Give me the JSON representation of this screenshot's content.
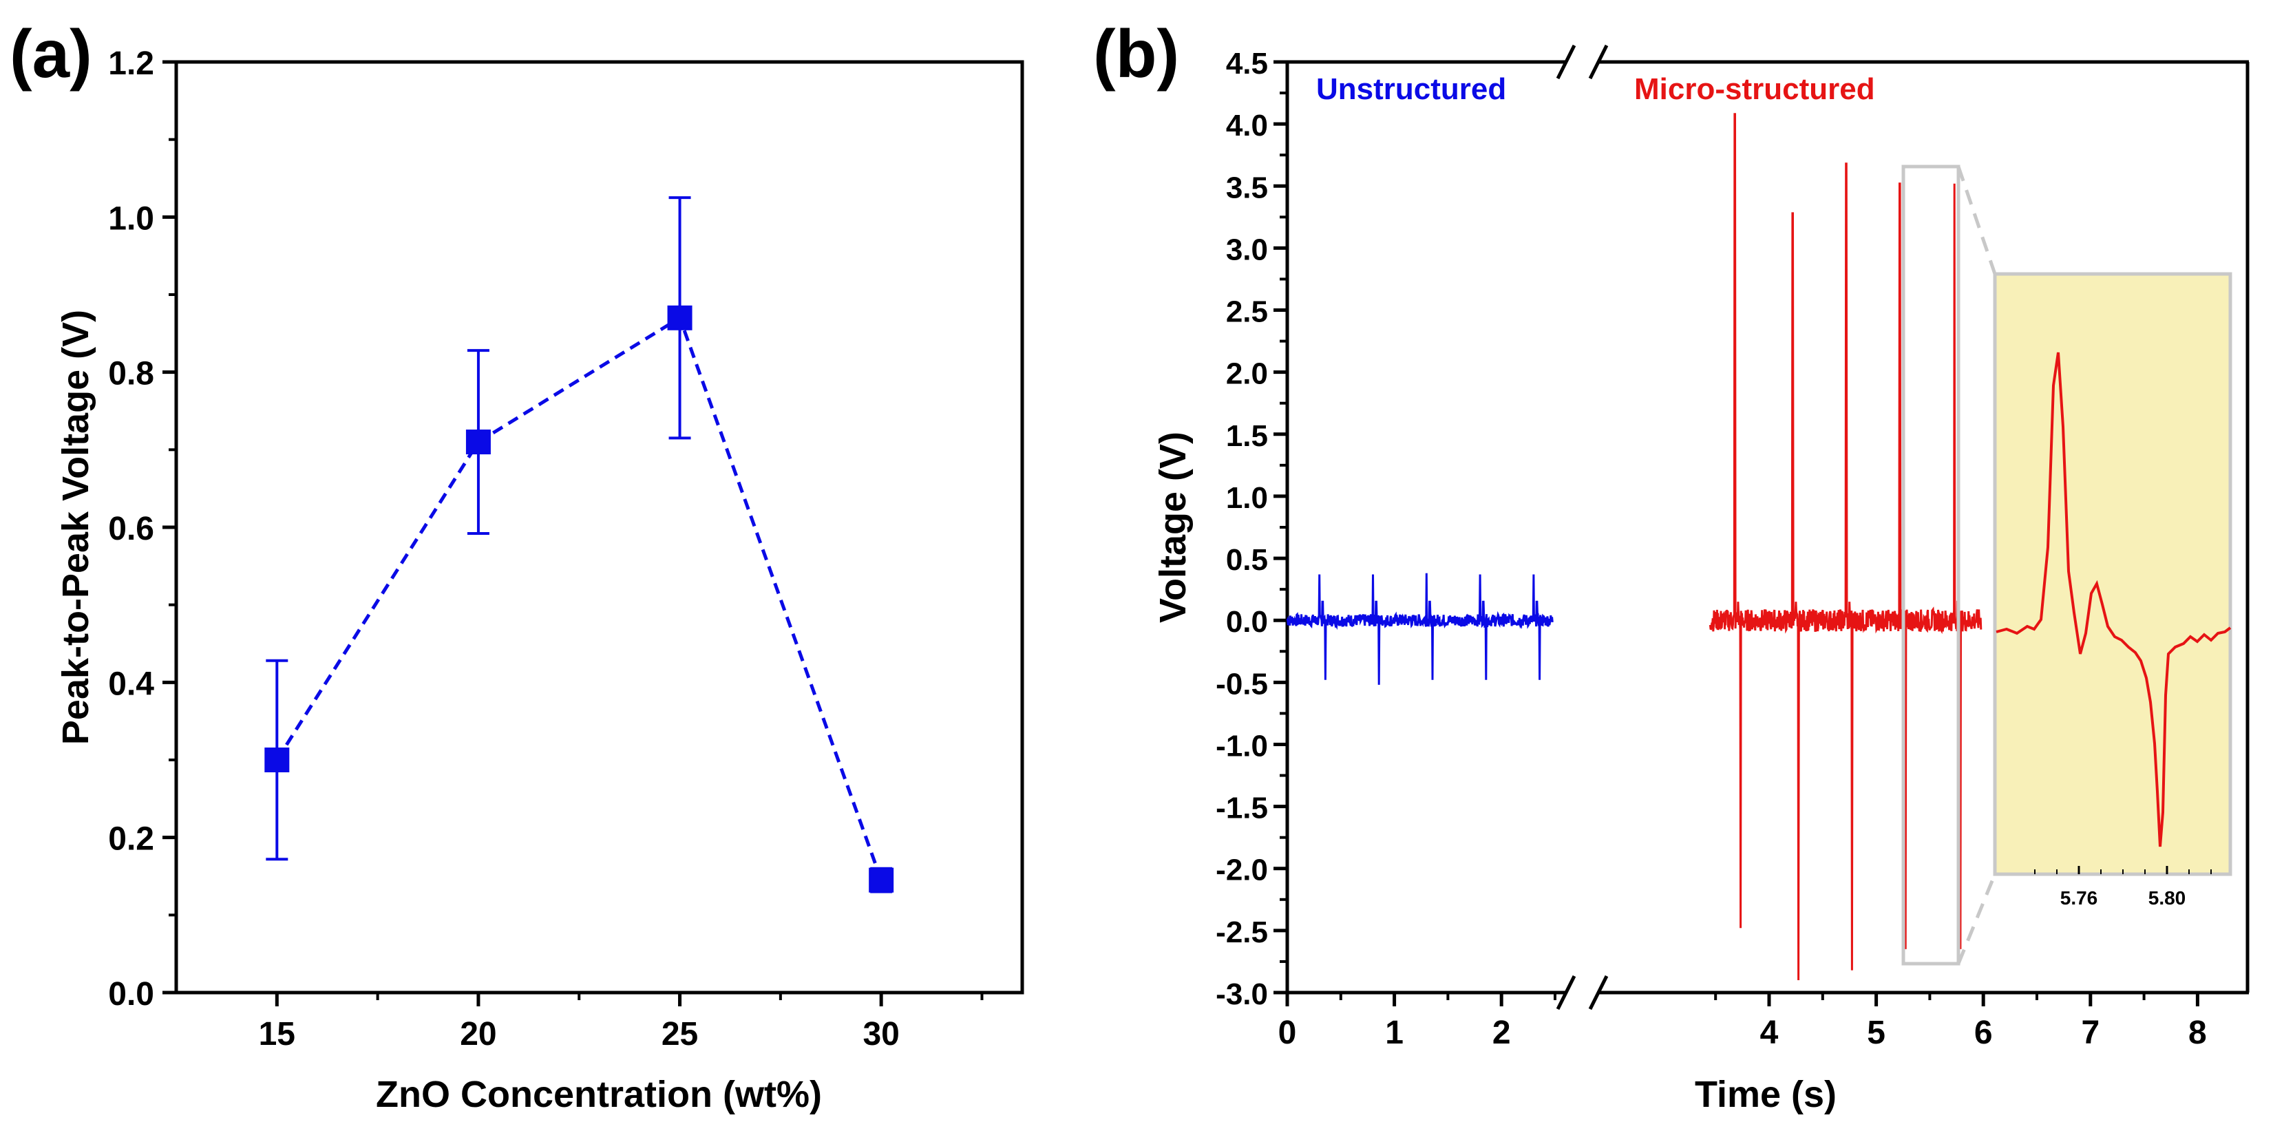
{
  "chart_data": [
    {
      "panel_label": "(a)",
      "type": "line",
      "title": "",
      "xlabel": "ZnO Concentration (wt%)",
      "ylabel": "Peak-to-Peak Voltage (V)",
      "xlim": [
        12.5,
        33.5
      ],
      "ylim": [
        0.0,
        1.2
      ],
      "x_ticks": [
        "15",
        "20",
        "25",
        "30"
      ],
      "y_ticks": [
        "0.0",
        "0.2",
        "0.4",
        "0.6",
        "0.8",
        "1.0",
        "1.2"
      ],
      "series": [
        {
          "name": "Peak-to-Peak Voltage",
          "color": "#0a0ae6",
          "line_style": "dashed",
          "marker": "square",
          "x": [
            15,
            20,
            25,
            30
          ],
          "values": [
            0.3,
            0.71,
            0.87,
            0.145
          ],
          "error": [
            0.128,
            0.118,
            0.155,
            0.015
          ]
        }
      ]
    },
    {
      "panel_label": "(b)",
      "type": "line",
      "title": "",
      "xlabel": "Time (s)",
      "ylabel": "Voltage (V)",
      "ylim": [
        -3.0,
        4.5
      ],
      "x_ticks": [
        "0",
        "1",
        "2",
        "4",
        "5",
        "6",
        "7",
        "8"
      ],
      "y_ticks": [
        "-3.0",
        "-2.5",
        "-2.0",
        "-1.5",
        "-1.0",
        "-0.5",
        "0.0",
        "0.5",
        "1.0",
        "1.5",
        "2.0",
        "2.5",
        "3.0",
        "3.5",
        "4.0",
        "4.5"
      ],
      "axis_break": "between 2 and 4 s",
      "series": [
        {
          "name": "Unstructured",
          "color": "#0a0ae6",
          "baseline": 0.0,
          "spikes": [
            {
              "t": 0.3,
              "max": 0.37,
              "min": -0.48
            },
            {
              "t": 0.8,
              "max": 0.37,
              "min": -0.52
            },
            {
              "t": 1.3,
              "max": 0.38,
              "min": -0.48
            },
            {
              "t": 1.8,
              "max": 0.37,
              "min": -0.48
            },
            {
              "t": 2.3,
              "max": 0.37,
              "min": -0.48
            }
          ]
        },
        {
          "name": "Micro-structured",
          "color": "#e61414",
          "baseline": 0.0,
          "spikes": [
            {
              "t": 3.68,
              "max": 4.08,
              "min": -2.48
            },
            {
              "t": 4.22,
              "max": 3.28,
              "min": -2.9
            },
            {
              "t": 4.72,
              "max": 3.68,
              "min": -2.82
            },
            {
              "t": 5.22,
              "max": 3.52,
              "min": -2.65
            },
            {
              "t": 5.73,
              "max": 3.52,
              "min": -2.65
            }
          ]
        }
      ],
      "legend": [
        "Unstructured",
        "Micro-structured"
      ],
      "inset": {
        "x_ticks": [
          "5.76",
          "5.80"
        ],
        "background": "#f8f0b8",
        "series_color": "#e61414"
      }
    }
  ]
}
